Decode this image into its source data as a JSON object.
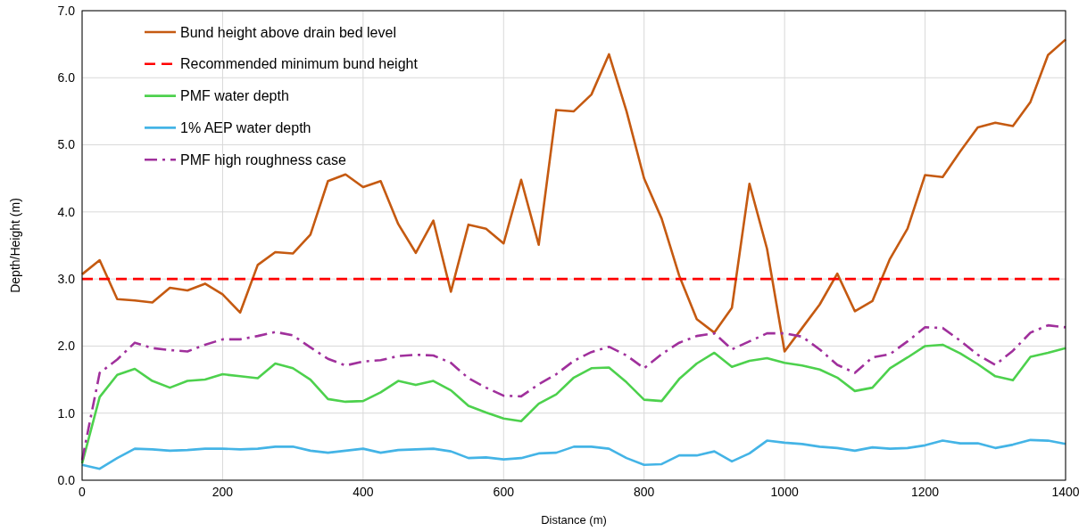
{
  "chart_data": {
    "type": "line",
    "xlabel": "Distance (m)",
    "ylabel": "Depth/Height (m)",
    "x": [
      0,
      25,
      50,
      75,
      100,
      125,
      150,
      175,
      200,
      225,
      250,
      275,
      300,
      325,
      350,
      375,
      400,
      425,
      450,
      475,
      500,
      525,
      550,
      575,
      600,
      625,
      650,
      675,
      700,
      725,
      750,
      775,
      800,
      825,
      850,
      875,
      900,
      925,
      950,
      975,
      1000,
      1025,
      1050,
      1075,
      1100,
      1125,
      1150,
      1175,
      1200,
      1225,
      1250,
      1275,
      1300,
      1325,
      1350,
      1375,
      1400
    ],
    "series": [
      {
        "name": "Bund height above drain bed level",
        "color": "#c55a11",
        "line_style": "solid",
        "values": [
          3.07,
          3.28,
          2.7,
          2.68,
          2.65,
          2.87,
          2.83,
          2.93,
          2.77,
          2.5,
          3.21,
          3.4,
          3.38,
          3.66,
          4.46,
          4.56,
          4.37,
          4.46,
          3.82,
          3.39,
          3.87,
          2.81,
          3.81,
          3.75,
          3.53,
          4.48,
          3.51,
          5.52,
          5.5,
          5.75,
          6.35,
          5.5,
          4.5,
          3.9,
          3.05,
          2.4,
          2.2,
          2.57,
          4.42,
          3.45,
          1.92,
          2.27,
          2.62,
          3.08,
          2.52,
          2.67,
          3.3,
          3.75,
          4.55,
          4.52,
          4.9,
          5.26,
          5.33,
          5.28,
          5.64,
          6.34,
          6.57
        ]
      },
      {
        "name": "Recommended minimum bund height",
        "color": "#ff0000",
        "line_style": "dashed",
        "x": [
          0,
          1400
        ],
        "values": [
          3.0,
          3.0
        ]
      },
      {
        "name": "PMF water depth",
        "color": "#4dd14d",
        "line_style": "solid",
        "values": [
          0.25,
          1.24,
          1.57,
          1.66,
          1.48,
          1.38,
          1.48,
          1.5,
          1.58,
          1.55,
          1.52,
          1.74,
          1.67,
          1.5,
          1.21,
          1.17,
          1.18,
          1.31,
          1.48,
          1.42,
          1.48,
          1.34,
          1.11,
          1.01,
          0.92,
          0.88,
          1.14,
          1.28,
          1.53,
          1.67,
          1.68,
          1.46,
          1.2,
          1.18,
          1.51,
          1.74,
          1.9,
          1.69,
          1.78,
          1.82,
          1.75,
          1.71,
          1.65,
          1.53,
          1.33,
          1.38,
          1.67,
          1.83,
          2.0,
          2.02,
          1.89,
          1.73,
          1.55,
          1.49,
          1.84,
          1.9,
          1.97
        ]
      },
      {
        "name": "1% AEP water depth",
        "color": "#44b4e6",
        "line_style": "solid",
        "values": [
          0.23,
          0.17,
          0.33,
          0.47,
          0.46,
          0.44,
          0.45,
          0.47,
          0.47,
          0.46,
          0.47,
          0.5,
          0.5,
          0.44,
          0.41,
          0.44,
          0.47,
          0.41,
          0.45,
          0.46,
          0.47,
          0.43,
          0.33,
          0.34,
          0.31,
          0.33,
          0.4,
          0.41,
          0.5,
          0.5,
          0.47,
          0.33,
          0.23,
          0.24,
          0.37,
          0.37,
          0.43,
          0.28,
          0.4,
          0.59,
          0.56,
          0.54,
          0.5,
          0.48,
          0.44,
          0.49,
          0.47,
          0.48,
          0.52,
          0.59,
          0.55,
          0.55,
          0.48,
          0.53,
          0.6,
          0.59,
          0.54
        ]
      },
      {
        "name": "PMF high roughness case",
        "color": "#a0309c",
        "line_style": "dashdot",
        "values": [
          0.3,
          1.6,
          1.8,
          2.05,
          1.97,
          1.94,
          1.92,
          2.02,
          2.1,
          2.1,
          2.15,
          2.21,
          2.16,
          1.98,
          1.81,
          1.71,
          1.77,
          1.79,
          1.85,
          1.87,
          1.86,
          1.75,
          1.52,
          1.38,
          1.26,
          1.25,
          1.43,
          1.58,
          1.78,
          1.91,
          1.99,
          1.86,
          1.67,
          1.88,
          2.05,
          2.15,
          2.19,
          1.95,
          2.07,
          2.19,
          2.19,
          2.14,
          1.95,
          1.72,
          1.6,
          1.83,
          1.88,
          2.07,
          2.28,
          2.27,
          2.08,
          1.87,
          1.72,
          1.93,
          2.2,
          2.31,
          2.28
        ]
      }
    ],
    "xlim": [
      0,
      1400
    ],
    "xticks": [
      0,
      200,
      400,
      600,
      800,
      1000,
      1200,
      1400
    ],
    "ylim": [
      0,
      7
    ],
    "yticks": [
      {
        "value": 0,
        "label": "0.0"
      },
      {
        "value": 1,
        "label": "1.0"
      },
      {
        "value": 2,
        "label": "2.0"
      },
      {
        "value": 3,
        "label": "3.0"
      },
      {
        "value": 4,
        "label": "4.0"
      },
      {
        "value": 5,
        "label": "5.0"
      },
      {
        "value": 6,
        "label": "6.0"
      },
      {
        "value": 7,
        "label": "7.0"
      }
    ],
    "grid": true,
    "legend": "top left",
    "marker": "none"
  }
}
